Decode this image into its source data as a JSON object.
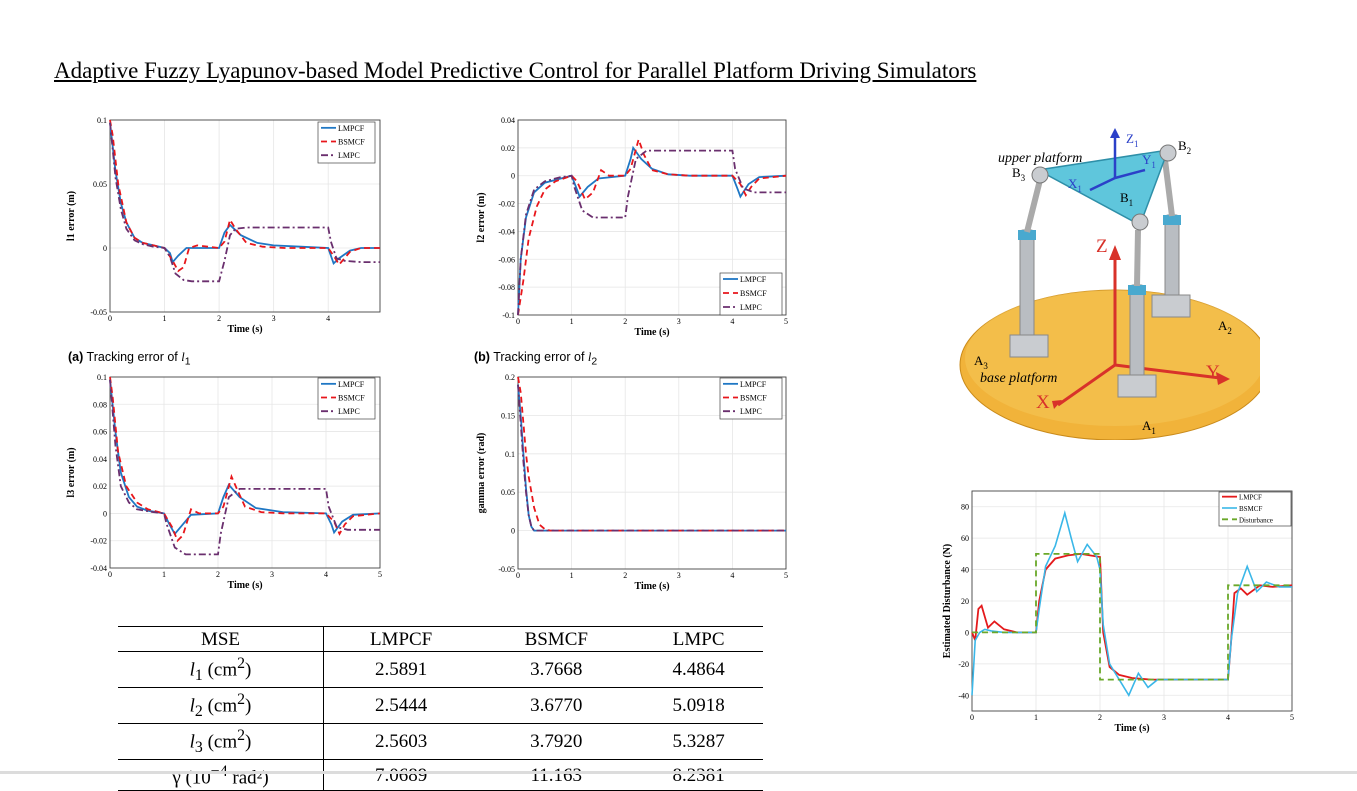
{
  "title": "Adaptive Fuzzy Lyapunov-based Model Predictive Control for Parallel Platform Driving Simulators",
  "colors": {
    "lmpcf": "#1f77c4",
    "bsmcf": "#e8161b",
    "lmpc": "#6a2f6e",
    "dist_red": "#e41a1c",
    "dist_blue": "#3ab7e8",
    "dist_green": "#6aa829",
    "platform": "#5fc6dc",
    "base": "#f1b33a"
  },
  "captions": {
    "a": {
      "prefix": "(a)",
      "text": "Tracking error of ",
      "var": "l",
      "sub": "1"
    },
    "b": {
      "prefix": "(b)",
      "text": "Tracking error of ",
      "var": "l",
      "sub": "2"
    }
  },
  "table": {
    "headers": [
      "MSE",
      "LMPCF",
      "BSMCF",
      "LMPC"
    ],
    "rows": [
      {
        "var": "l",
        "sub": "1",
        "unit": "(cm",
        "sup": "2",
        "close": ")",
        "values": [
          "2.5891",
          "3.7668",
          "4.4864"
        ]
      },
      {
        "var": "l",
        "sub": "2",
        "unit": "(cm",
        "sup": "2",
        "close": ")",
        "values": [
          "2.5444",
          "3.6770",
          "5.0918"
        ]
      },
      {
        "var": "l",
        "sub": "3",
        "unit": "(cm",
        "sup": "2",
        "close": ")",
        "values": [
          "2.5603",
          "3.7920",
          "5.3287"
        ]
      },
      {
        "var": "γ",
        "sub": "",
        "unit": "(10",
        "sup": "−4",
        "close": " rad²)",
        "values": [
          "7.0689",
          "11.163",
          "8.2381"
        ]
      }
    ]
  },
  "robot": {
    "upper_platform": "upper platform",
    "base_platform": "base platform",
    "labels": {
      "B1": "B",
      "B2": "B",
      "B3": "B",
      "A1": "A",
      "A2": "A",
      "A3": "A",
      "X": "X",
      "Y": "Y",
      "Z": "Z",
      "X1": "X",
      "Y1": "Y",
      "Z1": "Z"
    },
    "subs": {
      "one": "1",
      "two": "2",
      "three": "3"
    }
  },
  "chart_data": [
    {
      "id": "l1",
      "type": "line",
      "xlabel": "Time (s)",
      "ylabel": "l1 error (m)",
      "xlim": [
        0,
        4.95
      ],
      "ylim": [
        -0.05,
        0.1
      ],
      "xticks": [
        0,
        1,
        2,
        3,
        4
      ],
      "yticks": [
        -0.05,
        0,
        0.05,
        0.1
      ],
      "ytick_labels": [
        "-0.05",
        "0",
        "0.05",
        "0.1"
      ],
      "xtick_labels": [
        "0",
        "1",
        "2",
        "3",
        "4"
      ],
      "legend": [
        "LMPCF",
        "BSMCF",
        "LMPC"
      ],
      "series": [
        {
          "name": "LMPCF",
          "x": [
            0,
            0.1,
            0.2,
            0.3,
            0.45,
            0.6,
            0.8,
            1.0,
            1.1,
            1.15,
            1.25,
            1.4,
            1.6,
            2.0,
            2.1,
            2.2,
            2.4,
            2.7,
            3.0,
            3.5,
            4.0,
            4.1,
            4.2,
            4.4,
            4.6,
            4.95
          ],
          "y": [
            0.098,
            0.06,
            0.035,
            0.02,
            0.008,
            0.004,
            0.002,
            0.0,
            -0.004,
            -0.011,
            -0.006,
            0.0,
            0.0,
            0.0,
            0.012,
            0.018,
            0.01,
            0.004,
            0.002,
            0.001,
            0.0,
            -0.012,
            -0.008,
            -0.002,
            0.0,
            0.0
          ]
        },
        {
          "name": "BSMCF",
          "x": [
            0,
            0.05,
            0.15,
            0.3,
            0.45,
            0.6,
            0.8,
            1.0,
            1.15,
            1.25,
            1.35,
            1.45,
            1.6,
            2.0,
            2.1,
            2.2,
            2.3,
            2.5,
            2.8,
            3.2,
            4.0,
            4.1,
            4.2,
            4.4,
            4.6,
            4.95
          ],
          "y": [
            0.1,
            0.088,
            0.05,
            0.02,
            0.008,
            0.004,
            0.002,
            0.0,
            -0.01,
            -0.018,
            -0.015,
            0.0,
            0.002,
            0.0,
            0.005,
            0.022,
            0.015,
            0.004,
            0.001,
            0.0,
            0.0,
            -0.006,
            -0.013,
            -0.003,
            0.0,
            0.0
          ]
        },
        {
          "name": "LMPC",
          "x": [
            0,
            0.1,
            0.2,
            0.3,
            0.45,
            0.6,
            0.8,
            1.0,
            1.1,
            1.2,
            1.35,
            1.5,
            2.0,
            2.1,
            2.2,
            2.3,
            2.5,
            3.0,
            4.0,
            4.05,
            4.15,
            4.3,
            4.6,
            4.95
          ],
          "y": [
            0.098,
            0.055,
            0.03,
            0.015,
            0.006,
            0.003,
            0.001,
            0.0,
            -0.007,
            -0.02,
            -0.025,
            -0.026,
            -0.026,
            -0.01,
            0.01,
            0.015,
            0.016,
            0.016,
            0.016,
            0.005,
            -0.008,
            -0.01,
            -0.011,
            -0.011
          ]
        }
      ]
    },
    {
      "id": "l2",
      "type": "line",
      "xlabel": "Time (s)",
      "ylabel": "l2 error (m)",
      "xlim": [
        0,
        5
      ],
      "ylim": [
        -0.1,
        0.04
      ],
      "xticks": [
        0,
        1,
        2,
        3,
        4,
        5
      ],
      "yticks": [
        -0.1,
        -0.08,
        -0.06,
        -0.04,
        -0.02,
        0,
        0.02,
        0.04
      ],
      "ytick_labels": [
        "-0.1",
        "-0.08",
        "-0.06",
        "-0.04",
        "-0.02",
        "0",
        "0.02",
        "0.04"
      ],
      "xtick_labels": [
        "0",
        "1",
        "2",
        "3",
        "4",
        "5"
      ],
      "legend": [
        "LMPCF",
        "BSMCF",
        "LMPC"
      ],
      "series": [
        {
          "name": "LMPCF",
          "x": [
            0,
            0.05,
            0.15,
            0.3,
            0.5,
            0.8,
            1.0,
            1.1,
            1.15,
            1.3,
            1.5,
            2.0,
            2.1,
            2.15,
            2.3,
            2.5,
            2.8,
            3.2,
            4.0,
            4.1,
            4.15,
            4.3,
            4.5,
            5.0
          ],
          "y": [
            -0.1,
            -0.06,
            -0.03,
            -0.012,
            -0.005,
            -0.002,
            0.0,
            -0.01,
            -0.015,
            -0.008,
            -0.002,
            0.0,
            0.012,
            0.02,
            0.012,
            0.005,
            0.001,
            0.0,
            0.0,
            -0.01,
            -0.015,
            -0.006,
            -0.001,
            0.0
          ]
        },
        {
          "name": "BSMCF",
          "x": [
            0,
            0.1,
            0.2,
            0.35,
            0.5,
            0.7,
            1.0,
            1.1,
            1.25,
            1.4,
            1.55,
            1.7,
            2.0,
            2.1,
            2.25,
            2.35,
            2.5,
            2.8,
            3.2,
            4.0,
            4.15,
            4.25,
            4.35,
            4.5,
            5.0
          ],
          "y": [
            -0.1,
            -0.075,
            -0.045,
            -0.022,
            -0.01,
            -0.004,
            0.0,
            -0.004,
            -0.017,
            -0.012,
            0.004,
            0.0,
            0.0,
            0.005,
            0.026,
            0.015,
            0.004,
            0.001,
            0.0,
            0.0,
            -0.006,
            -0.014,
            -0.008,
            -0.002,
            0.0
          ]
        },
        {
          "name": "LMPC",
          "x": [
            0,
            0.05,
            0.15,
            0.3,
            0.5,
            0.8,
            1.0,
            1.05,
            1.2,
            1.4,
            1.6,
            2.0,
            2.05,
            2.2,
            2.4,
            3.0,
            4.0,
            4.05,
            4.2,
            4.4,
            5.0
          ],
          "y": [
            -0.1,
            -0.06,
            -0.028,
            -0.01,
            -0.004,
            -0.001,
            0.0,
            -0.008,
            -0.025,
            -0.03,
            -0.03,
            -0.03,
            -0.015,
            0.012,
            0.018,
            0.018,
            0.018,
            0.005,
            -0.009,
            -0.012,
            -0.012
          ]
        }
      ]
    },
    {
      "id": "l3",
      "type": "line",
      "xlabel": "Time (s)",
      "ylabel": "l3 error (m)",
      "xlim": [
        0,
        5
      ],
      "ylim": [
        -0.04,
        0.1
      ],
      "xticks": [
        0,
        1,
        2,
        3,
        4,
        5
      ],
      "yticks": [
        -0.04,
        -0.02,
        0,
        0.02,
        0.04,
        0.06,
        0.08,
        0.1
      ],
      "ytick_labels": [
        "-0.04",
        "-0.02",
        "0",
        "0.02",
        "0.04",
        "0.06",
        "0.08",
        "0.1"
      ],
      "xtick_labels": [
        "0",
        "1",
        "2",
        "3",
        "4",
        "5"
      ],
      "legend": [
        "LMPCF",
        "BSMCF",
        "LMPC"
      ],
      "series": [
        {
          "name": "LMPCF",
          "x": [
            0,
            0.1,
            0.2,
            0.35,
            0.5,
            0.7,
            1.0,
            1.1,
            1.2,
            1.35,
            1.5,
            2.0,
            2.1,
            2.2,
            2.4,
            2.7,
            3.2,
            4.0,
            4.1,
            4.15,
            4.3,
            4.5,
            5.0
          ],
          "y": [
            0.098,
            0.06,
            0.03,
            0.012,
            0.005,
            0.002,
            0.0,
            -0.008,
            -0.015,
            -0.008,
            -0.001,
            0.0,
            0.012,
            0.021,
            0.012,
            0.004,
            0.001,
            0.0,
            -0.008,
            -0.014,
            -0.006,
            -0.001,
            0.0
          ]
        },
        {
          "name": "BSMCF",
          "x": [
            0,
            0.05,
            0.15,
            0.3,
            0.5,
            0.7,
            1.0,
            1.15,
            1.25,
            1.35,
            1.5,
            1.65,
            2.0,
            2.1,
            2.25,
            2.35,
            2.5,
            2.8,
            3.2,
            4.0,
            4.15,
            4.25,
            4.35,
            4.5,
            5.0
          ],
          "y": [
            0.1,
            0.085,
            0.045,
            0.02,
            0.008,
            0.003,
            0.0,
            -0.01,
            -0.02,
            -0.016,
            0.003,
            0.0,
            0.0,
            0.005,
            0.027,
            0.018,
            0.005,
            0.001,
            0.0,
            0.0,
            -0.006,
            -0.015,
            -0.008,
            -0.002,
            0.0
          ]
        },
        {
          "name": "LMPC",
          "x": [
            0,
            0.1,
            0.2,
            0.35,
            0.5,
            0.8,
            1.0,
            1.05,
            1.2,
            1.4,
            1.6,
            2.0,
            2.05,
            2.2,
            2.4,
            3.0,
            4.0,
            4.05,
            4.2,
            4.4,
            5.0
          ],
          "y": [
            0.098,
            0.05,
            0.02,
            0.008,
            0.003,
            0.001,
            0.0,
            -0.008,
            -0.025,
            -0.03,
            -0.03,
            -0.03,
            -0.015,
            0.012,
            0.018,
            0.018,
            0.018,
            0.005,
            -0.01,
            -0.012,
            -0.012
          ]
        }
      ]
    },
    {
      "id": "gamma",
      "type": "line",
      "xlabel": "Time (s)",
      "ylabel": "gamma error (rad)",
      "xlim": [
        0,
        5
      ],
      "ylim": [
        -0.05,
        0.2
      ],
      "xticks": [
        0,
        1,
        2,
        3,
        4,
        5
      ],
      "yticks": [
        -0.05,
        0,
        0.05,
        0.1,
        0.15,
        0.2
      ],
      "ytick_labels": [
        "-0.05",
        "0",
        "0.05",
        "0.1",
        "0.15",
        "0.2"
      ],
      "xtick_labels": [
        "0",
        "1",
        "2",
        "3",
        "4",
        "5"
      ],
      "legend": [
        "LMPCF",
        "BSMCF",
        "LMPC"
      ],
      "series": [
        {
          "name": "LMPCF",
          "x": [
            0,
            0.05,
            0.1,
            0.15,
            0.2,
            0.25,
            0.3,
            5.0
          ],
          "y": [
            0.19,
            0.15,
            0.1,
            0.055,
            0.02,
            0.005,
            0.0,
            0.0
          ]
        },
        {
          "name": "BSMCF",
          "x": [
            0,
            0.05,
            0.1,
            0.15,
            0.2,
            0.3,
            0.4,
            0.5,
            0.6,
            5.0
          ],
          "y": [
            0.2,
            0.18,
            0.14,
            0.1,
            0.07,
            0.03,
            0.008,
            0.002,
            0.0,
            0.0
          ]
        },
        {
          "name": "LMPC",
          "x": [
            0,
            0.05,
            0.1,
            0.15,
            0.2,
            0.25,
            0.3,
            5.0
          ],
          "y": [
            0.19,
            0.14,
            0.09,
            0.05,
            0.02,
            0.005,
            0.0,
            0.0
          ]
        }
      ]
    },
    {
      "id": "disturbance",
      "type": "line",
      "xlabel": "Time (s)",
      "ylabel": "Estimated Disturbance (N)",
      "xlim": [
        0,
        5
      ],
      "ylim": [
        -50,
        90
      ],
      "xticks": [
        0,
        1,
        2,
        3,
        4,
        5
      ],
      "yticks": [
        -40,
        -20,
        0,
        20,
        40,
        60,
        80
      ],
      "ytick_labels": [
        "-40",
        "-20",
        "0",
        "20",
        "40",
        "60",
        "80"
      ],
      "xtick_labels": [
        "0",
        "1",
        "2",
        "3",
        "4",
        "5"
      ],
      "legend": [
        "LMPCF",
        "BSMCF",
        "Disturbance"
      ],
      "series": [
        {
          "name": "LMPCF",
          "x": [
            0,
            0.05,
            0.1,
            0.15,
            0.25,
            0.35,
            0.5,
            0.7,
            1.0,
            1.05,
            1.15,
            1.3,
            1.5,
            1.7,
            2.0,
            2.05,
            2.15,
            2.3,
            2.5,
            2.8,
            3.2,
            4.0,
            4.05,
            4.1,
            4.2,
            4.3,
            4.5,
            4.7,
            5.0
          ],
          "y": [
            0,
            -5,
            15,
            17,
            3,
            7,
            2,
            0,
            0,
            20,
            40,
            47,
            49,
            50,
            48,
            0,
            -22,
            -27,
            -29,
            -30,
            -30,
            -30,
            -5,
            25,
            28,
            24,
            30,
            29,
            30
          ]
        },
        {
          "name": "BSMCF",
          "x": [
            0,
            0.05,
            0.12,
            0.2,
            0.3,
            0.5,
            1.0,
            1.05,
            1.15,
            1.3,
            1.45,
            1.55,
            1.65,
            1.8,
            1.95,
            2.0,
            2.05,
            2.15,
            2.3,
            2.45,
            2.6,
            2.75,
            2.9,
            3.2,
            4.0,
            4.05,
            4.15,
            4.3,
            4.45,
            4.6,
            4.8,
            5.0
          ],
          "y": [
            -40,
            -5,
            0,
            2,
            1,
            0,
            0,
            15,
            42,
            55,
            76,
            60,
            45,
            56,
            48,
            40,
            5,
            -20,
            -30,
            -40,
            -26,
            -35,
            -30,
            -30,
            -30,
            -5,
            25,
            42,
            26,
            32,
            29,
            29
          ]
        },
        {
          "name": "Disturbance",
          "x": [
            0,
            1,
            1,
            2,
            2,
            4,
            4,
            5
          ],
          "y": [
            0,
            0,
            50,
            50,
            -30,
            -30,
            30,
            30
          ]
        }
      ]
    }
  ]
}
